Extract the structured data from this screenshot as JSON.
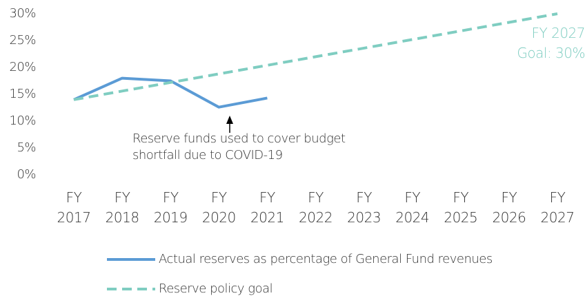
{
  "chart_data": {
    "type": "line",
    "categories": [
      "FY 2017",
      "FY 2018",
      "FY 2019",
      "FY 2020",
      "FY 2021",
      "FY 2022",
      "FY 2023",
      "FY 2024",
      "FY 2025",
      "FY 2026",
      "FY 2027"
    ],
    "series": [
      {
        "name": "Actual reserves as percentage of General Fund revenues",
        "color": "#5b9bd5",
        "dashed": false,
        "values": [
          14,
          18,
          17.5,
          12.6,
          14.3,
          null,
          null,
          null,
          null,
          null,
          null
        ]
      },
      {
        "name": "Reserve policy goal",
        "color": "#7fcdc1",
        "dashed": true,
        "values": [
          14,
          15.6,
          17.2,
          18.8,
          20.4,
          22,
          23.6,
          25.2,
          26.8,
          28.4,
          30
        ]
      }
    ],
    "ylim": [
      0,
      30
    ],
    "yticks": [
      {
        "value": 0,
        "label": "0%"
      },
      {
        "value": 5,
        "label": "5%"
      },
      {
        "value": 10,
        "label": "10%"
      },
      {
        "value": 15,
        "label": "15%"
      },
      {
        "value": 20,
        "label": "20%"
      },
      {
        "value": 25,
        "label": "25%"
      },
      {
        "value": 30,
        "label": "30%"
      }
    ],
    "annotations": [
      "Reserve funds used to cover budget shortfall due to COVID-19",
      "FY 2027 Goal: 30%"
    ]
  }
}
